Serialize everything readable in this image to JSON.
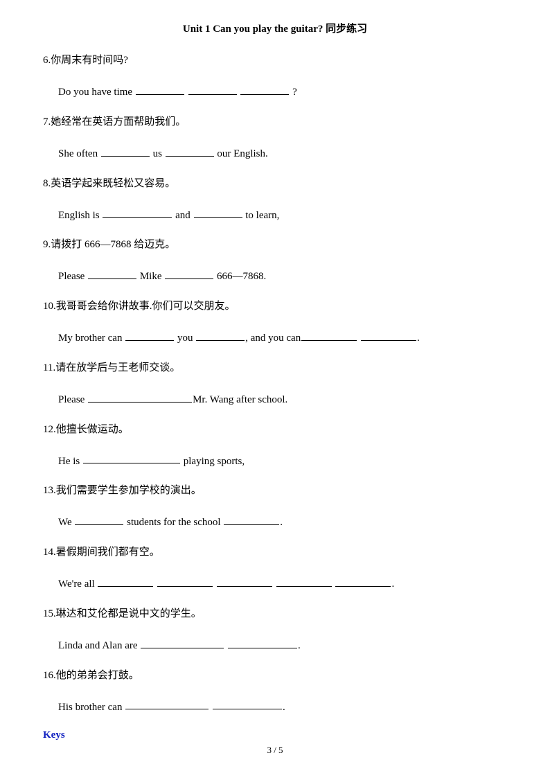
{
  "title": "Unit 1 Can you play the guitar?  同步练习",
  "questions": [
    {
      "num": "6",
      "cn": "你周末有时间吗?",
      "en_parts": [
        "Do you have time "
      ],
      "blanks": [
        70,
        70,
        70
      ],
      "tail": "?"
    },
    {
      "num": "7",
      "cn": "她经常在英语方面帮助我们。",
      "en_parts": [
        "She often ",
        " us ",
        " our English."
      ],
      "blanks": [
        70,
        70
      ]
    },
    {
      "num": "8",
      "cn": "英语学起来既轻松又容易。",
      "en_parts": [
        "English is ",
        " and ",
        " to learn,"
      ],
      "blanks": [
        100,
        70
      ]
    },
    {
      "num": "9",
      "cn": "请拨打 666—7868 给迈克。",
      "en_parts": [
        "Please ",
        " Mike ",
        " 666—7868."
      ],
      "blanks": [
        70,
        70
      ]
    },
    {
      "num": "10",
      "cn": "我哥哥会给你讲故事.你们可以交朋友。",
      "en_parts": [
        "My brother can ",
        " you ",
        ", and you can",
        " ",
        "."
      ],
      "blanks": [
        70,
        70,
        80,
        80
      ]
    },
    {
      "num": "11",
      "cn": "请在放学后与王老师交谈。",
      "en_parts": [
        "Please ",
        "Mr. Wang after school."
      ],
      "blanks": [
        150
      ]
    },
    {
      "num": "12",
      "cn": "他擅长做运动。",
      "en_parts": [
        "He is ",
        " playing sports,"
      ],
      "blanks": [
        140
      ]
    },
    {
      "num": "13",
      "cn": "我们需要学生参加学校的演出。",
      "en_parts": [
        "We  ",
        " students for the school ",
        "."
      ],
      "blanks": [
        70,
        80
      ]
    },
    {
      "num": "14",
      "cn": "暑假期间我们都有空。",
      "en_parts": [
        "We're all ",
        " ",
        " ",
        " ",
        " ",
        "."
      ],
      "blanks": [
        80,
        80,
        80,
        80,
        80
      ]
    },
    {
      "num": "15",
      "cn": "琳达和艾伦都是说中文的学生。",
      "en_parts": [
        "Linda and Alan are ",
        " ",
        "."
      ],
      "blanks": [
        120,
        100
      ]
    },
    {
      "num": "16",
      "cn": "他的弟弟会打鼓。",
      "en_parts": [
        "His brother can ",
        " ",
        "."
      ],
      "blanks": [
        120,
        100
      ]
    }
  ],
  "keys_label": "Keys",
  "footer": "3 / 5",
  "colors": {
    "text": "#000000",
    "keys": "#1020c0",
    "background": "#ffffff"
  }
}
